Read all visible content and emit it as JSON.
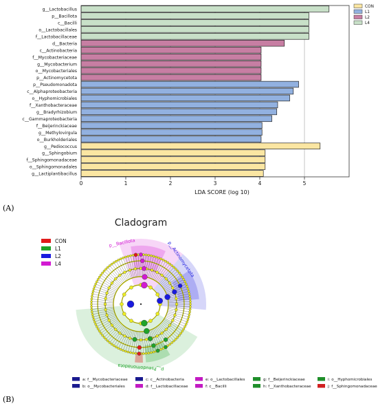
{
  "panels": {
    "a_label": "(A)",
    "b_label": "(B)"
  },
  "chart_data": [
    {
      "type": "bar",
      "orientation": "horizontal",
      "xlabel": "LDA SCORE (log 10)",
      "xlim": [
        0,
        6
      ],
      "xticks": [
        0,
        1,
        2,
        3,
        4,
        5
      ],
      "grid": true,
      "legend_position": "top-right",
      "legend": [
        {
          "name": "CON",
          "color": "#fbe6a2"
        },
        {
          "name": "L1",
          "color": "#92b1e0"
        },
        {
          "name": "L2",
          "color": "#c77ea3"
        },
        {
          "name": "L4",
          "color": "#c8e0c8"
        }
      ],
      "categories": [
        "g__Lactobacillus",
        "p__Bacillota",
        "c__Bacilli",
        "o__Lactobacillales",
        "f__Lactobacillaceae",
        "d__Bacteria",
        "c__Actinobacteria",
        "f__Mycobacteriaceae",
        "g__Mycobacterium",
        "o__Mycobacteriales",
        "p__Actinomycetota",
        "p__Pseudomonadota",
        "c__Alphaproteobacteria",
        "o__Hyphomicrobiales",
        "f__Xanthobacteraceae",
        "g__Bradyrhizobium",
        "c__Gammaproteobacteria",
        "f__Beijerinckiaceae",
        "g__Methylovirgula",
        "o__Burkholderiales",
        "g__Pediococcus",
        "g__Sphingobium",
        "f__Sphingomonadaceae",
        "o__Sphingomonadales",
        "g__Lactiplantibacillus"
      ],
      "values": [
        5.55,
        5.1,
        5.1,
        5.1,
        5.1,
        4.55,
        4.03,
        4.03,
        4.03,
        4.03,
        4.03,
        4.87,
        4.75,
        4.67,
        4.4,
        4.38,
        4.27,
        4.05,
        4.05,
        4.03,
        5.35,
        4.12,
        4.12,
        4.12,
        4.08
      ],
      "groups": [
        "L4",
        "L4",
        "L4",
        "L4",
        "L4",
        "L2",
        "L2",
        "L2",
        "L2",
        "L2",
        "L2",
        "L1",
        "L1",
        "L1",
        "L1",
        "L1",
        "L1",
        "L1",
        "L1",
        "L1",
        "CON",
        "CON",
        "CON",
        "CON",
        "CON"
      ]
    },
    {
      "type": "cladogram",
      "title": "Cladogram",
      "legend": [
        {
          "name": "CON",
          "color": "#e01b1b"
        },
        {
          "name": "L1",
          "color": "#1fa32a"
        },
        {
          "name": "L2",
          "color": "#1a1adf"
        },
        {
          "name": "L4",
          "color": "#d21ad2"
        }
      ],
      "arc_labels": [
        {
          "text": "p__Bacillota",
          "color": "#d21ad2"
        },
        {
          "text": "p__Actinomycetota",
          "color": "#1a1adf"
        },
        {
          "text": "p__Pseudomonadota",
          "color": "#1fa32a"
        }
      ],
      "key_entries": [
        {
          "text": "a: f__Mycobacteriaceae",
          "color": "#1a1a8f"
        },
        {
          "text": "b: o__Mycobacteriales",
          "color": "#1a1a8f"
        },
        {
          "text": "c: c__Actinobacteria",
          "color": "#1a1a8f"
        },
        {
          "text": "d: f__Lactobacillaceae",
          "color": "#c21ac2"
        },
        {
          "text": "e: o__Lactobacillales",
          "color": "#c21ac2"
        },
        {
          "text": "f: c__Bacilli",
          "color": "#c21ac2"
        },
        {
          "text": "g: f__Beijerinckiaceae",
          "color": "#1f8f2a"
        },
        {
          "text": "h: f__Xanthobacteraceae",
          "color": "#1f8f2a"
        },
        {
          "text": "i: o__Hyphomicrobiales",
          "color": "#1f8f2a"
        },
        {
          "text": "j: f__Sphingomonadaceae",
          "color": "#d02020"
        }
      ]
    }
  ]
}
